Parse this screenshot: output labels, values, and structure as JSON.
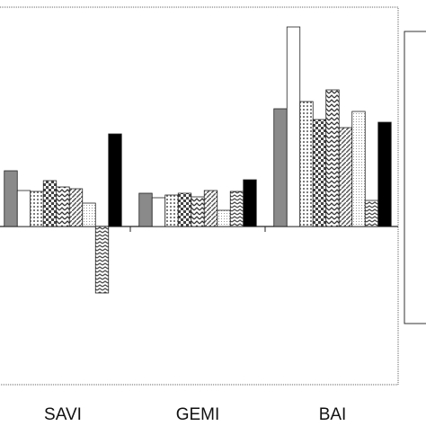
{
  "chart_data": {
    "type": "bar",
    "categories": [
      "SAVI",
      "GEMI",
      "BAI"
    ],
    "ylim": [
      -17.6,
      24.4
    ],
    "series": [
      {
        "color": "#8a8a8a",
        "pattern": "solid",
        "values": [
          6.2,
          3.7,
          13.1
        ]
      },
      {
        "color": "#ffffff",
        "pattern": "solid",
        "values": [
          4.0,
          3.2,
          22.2
        ]
      },
      {
        "color": "#555555",
        "pattern": "dots",
        "values": [
          3.9,
          3.5,
          13.9
        ]
      },
      {
        "color": "#444444",
        "pattern": "checks",
        "values": [
          5.1,
          3.7,
          11.9
        ]
      },
      {
        "color": "#333333",
        "pattern": "waves",
        "values": [
          4.4,
          3.3,
          15.2
        ]
      },
      {
        "color": "#555555",
        "pattern": "hatch",
        "values": [
          4.2,
          4.0,
          11.0
        ]
      },
      {
        "color": "#999999",
        "pattern": "finedots",
        "values": [
          2.6,
          1.8,
          12.8
        ]
      },
      {
        "color": "#444444",
        "pattern": "zigzag",
        "values": [
          -7.4,
          3.9,
          2.9
        ]
      },
      {
        "color": "#000000",
        "pattern": "solid",
        "values": [
          10.3,
          5.2,
          11.6
        ]
      }
    ]
  }
}
